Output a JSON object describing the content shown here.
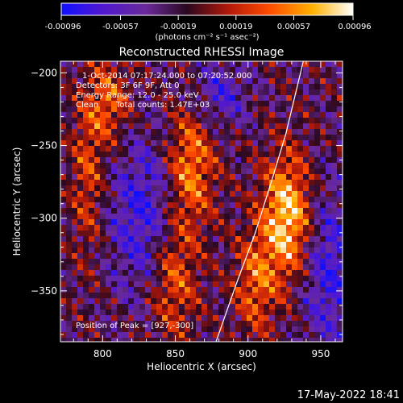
{
  "chart_data": {
    "type": "heatmap",
    "title": "Reconstructed RHESSI Image",
    "xlabel": "Heliocentric X (arcsec)",
    "ylabel": "Heliocentric Y (arcsec)",
    "xlim": [
      771,
      965
    ],
    "ylim": [
      -385,
      -192
    ],
    "xticks": [
      800,
      850,
      900,
      950
    ],
    "yticks": [
      -200,
      -250,
      -300,
      -350
    ],
    "colorbar": {
      "min": -0.00096,
      "max": 0.00096,
      "ticks": [
        "-0.00096",
        "-0.00057",
        "-0.00019",
        "0.00019",
        "0.00057",
        "0.00096"
      ],
      "unit_label": "(photons cm⁻² s⁻¹ asec⁻²)",
      "colormap": [
        "#1010ff",
        "#5a18c8",
        "#6a2a9a",
        "#3a0a2a",
        "#b0180a",
        "#ff5000",
        "#ffb000",
        "#ffffff"
      ]
    },
    "annotations": {
      "time": "1-Oct-2014 07:17:24.000 to 07:20:52.000",
      "detectors": "Detectors: 3F 6F 9F, Att 0",
      "energy": "Energy Range: 12.0 - 25.0 keV",
      "clean": "Clean",
      "counts": "Total counts: 1.47E+03",
      "peak": "Position of Peak = [927,-300]"
    },
    "peak": [
      927,
      -300
    ],
    "limb_arc": [
      [
        878,
        -385
      ],
      [
        892,
        -345
      ],
      [
        905,
        -310
      ],
      [
        916,
        -275
      ],
      [
        926,
        -242
      ],
      [
        938,
        -192
      ]
    ]
  },
  "footer": {
    "date": "17-May-2022 18:41"
  }
}
